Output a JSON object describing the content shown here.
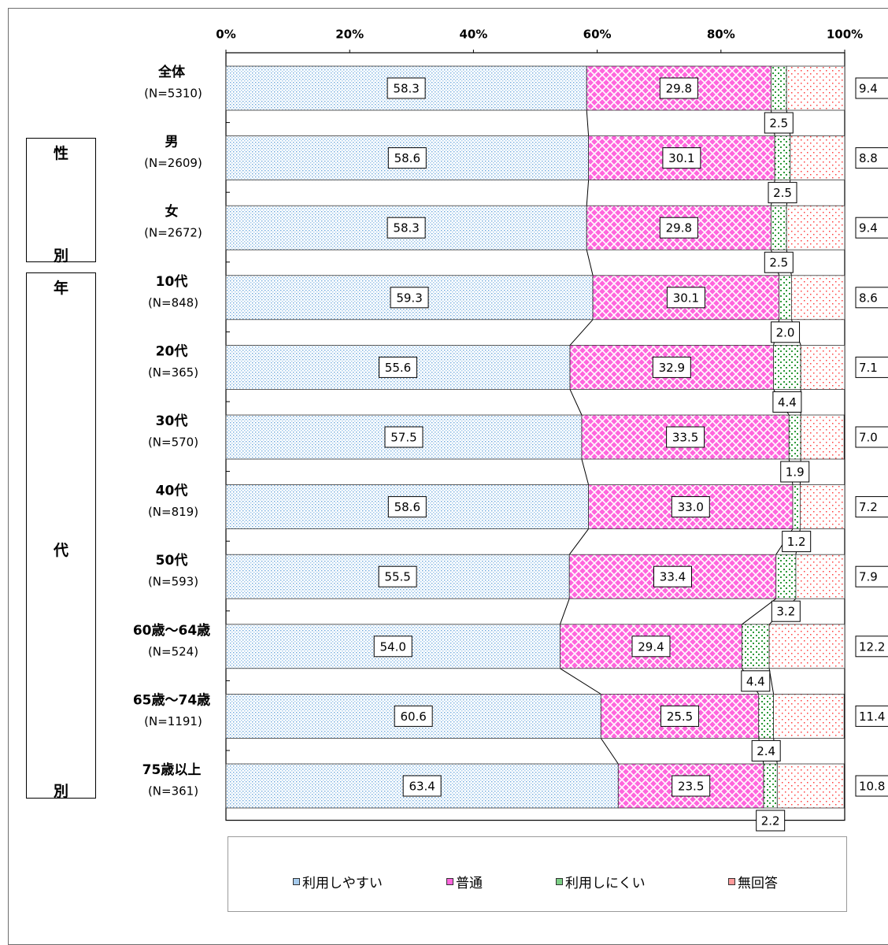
{
  "chart_data": {
    "type": "bar",
    "orientation": "horizontal",
    "stacked": "percent",
    "x_ticks": [
      "0%",
      "20%",
      "40%",
      "60%",
      "80%",
      "100%"
    ],
    "xlim": [
      0,
      100
    ],
    "categories": [
      {
        "name": "全体",
        "n": "(N=5310)"
      },
      {
        "name": "男",
        "n": "(N=2609)"
      },
      {
        "name": "女",
        "n": "(N=2672)"
      },
      {
        "name": "10代",
        "n": "(N=848)"
      },
      {
        "name": "20代",
        "n": "(N=365)"
      },
      {
        "name": "30代",
        "n": "(N=570)"
      },
      {
        "name": "40代",
        "n": "(N=819)"
      },
      {
        "name": "50代",
        "n": "(N=593)"
      },
      {
        "name": "60歳～64歳",
        "n": "(N=524)"
      },
      {
        "name": "65歳～74歳",
        "n": "(N=1191)"
      },
      {
        "name": "75歳以上",
        "n": "(N=361)"
      }
    ],
    "series": [
      {
        "name": "利用しやすい",
        "pattern": "dots-blue",
        "values": [
          58.3,
          58.6,
          58.3,
          59.3,
          55.6,
          57.5,
          58.6,
          55.5,
          54.0,
          60.6,
          63.4
        ]
      },
      {
        "name": "普通",
        "pattern": "crosshatch-magenta",
        "values": [
          29.8,
          30.1,
          29.8,
          30.1,
          32.9,
          33.5,
          33.0,
          33.4,
          29.4,
          25.5,
          23.5
        ]
      },
      {
        "name": "利用しにくい",
        "pattern": "dots-green",
        "values": [
          2.5,
          2.5,
          2.5,
          2.0,
          4.4,
          1.9,
          1.2,
          3.2,
          4.4,
          2.4,
          2.2
        ]
      },
      {
        "name": "無回答",
        "pattern": "dots-red",
        "values": [
          9.4,
          8.8,
          9.4,
          8.6,
          7.1,
          7.0,
          7.2,
          7.9,
          12.2,
          11.4,
          10.8
        ]
      }
    ],
    "groups": [
      {
        "chars": [
          "性",
          "別"
        ]
      },
      {
        "chars": [
          "年",
          "代",
          "別"
        ]
      }
    ],
    "grid": false,
    "legend": "bottom",
    "colors": {
      "blue": "#7fb3e0",
      "magenta": "#ff33cc",
      "green": "#2e9a3a",
      "red": "#ff4040"
    }
  }
}
